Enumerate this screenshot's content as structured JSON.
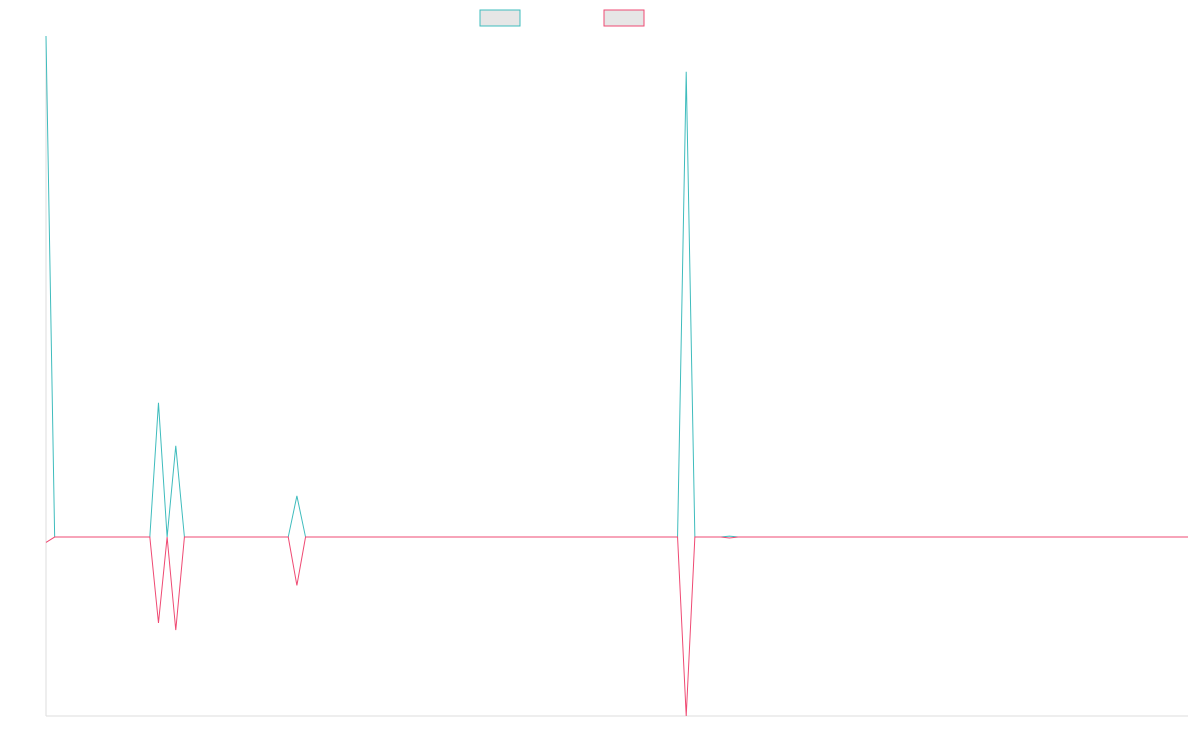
{
  "chart_data": {
    "type": "line",
    "title": "",
    "xlabel": "",
    "ylabel": "",
    "grid": false,
    "legend": {
      "position": "top-center",
      "entries": [
        {
          "label": "",
          "stroke": "#3fbcbd",
          "fill": "#e6e6e6"
        },
        {
          "label": "",
          "stroke": "#ef4a73",
          "fill": "#e6e6e6"
        }
      ]
    },
    "ylim": [
      -1.0,
      2.8
    ],
    "x": [
      0,
      1,
      2,
      3,
      4,
      5,
      6,
      7,
      8,
      9,
      10,
      11,
      12,
      13,
      14,
      15,
      16,
      17,
      18,
      19,
      20,
      21,
      22,
      23,
      24,
      25,
      26,
      27,
      28,
      29,
      30,
      31,
      32,
      33,
      34,
      35,
      36,
      37,
      38,
      39,
      40,
      41,
      42,
      43,
      44,
      45,
      46,
      47,
      48,
      49,
      50,
      51,
      52,
      53,
      54,
      55,
      56,
      57,
      58,
      59,
      60,
      61,
      62,
      63,
      64,
      65,
      66,
      67,
      68,
      69,
      70,
      71,
      72,
      73,
      74,
      75,
      76,
      77,
      78,
      79,
      80,
      81,
      82,
      83,
      84,
      85,
      86,
      87,
      88,
      89,
      90,
      91,
      92,
      93,
      94,
      95,
      96,
      97,
      98,
      99,
      100,
      101,
      102,
      103,
      104,
      105,
      106,
      107,
      108,
      109,
      110,
      111,
      112,
      113,
      114,
      115,
      116,
      117,
      118,
      119,
      120,
      121,
      122,
      123,
      124,
      125,
      126,
      127,
      128,
      129,
      130,
      131,
      132
    ],
    "series": [
      {
        "color": "#3fbcbd",
        "values": [
          2.8,
          0,
          0,
          0,
          0,
          0,
          0,
          0,
          0,
          0,
          0,
          0,
          0,
          0.75,
          0,
          0.51,
          0,
          0,
          0,
          0,
          0,
          0,
          0,
          0,
          0,
          0,
          0,
          0,
          0,
          0.23,
          0,
          0,
          0,
          0,
          0,
          0,
          0,
          0,
          0,
          0,
          0,
          0,
          0,
          0,
          0,
          0,
          0,
          0,
          0,
          0,
          0,
          0,
          0,
          0,
          0,
          0,
          0,
          0,
          0,
          0,
          0,
          0,
          0,
          0,
          0,
          0,
          0,
          0,
          0,
          0,
          0,
          0,
          0,
          0,
          2.6,
          0,
          0,
          0,
          0,
          0.005,
          0,
          0,
          0,
          0,
          0,
          0,
          0,
          0,
          0,
          0,
          0,
          0,
          0,
          0,
          0,
          0,
          0,
          0,
          0,
          0,
          0,
          0,
          0,
          0,
          0,
          0,
          0,
          0,
          0,
          0,
          0,
          0,
          0,
          0,
          0,
          0,
          0,
          0,
          0,
          0,
          0,
          0,
          0,
          0,
          0,
          0,
          0,
          0,
          0,
          0,
          0,
          0,
          0
        ]
      },
      {
        "color": "#ef4a73",
        "values": [
          -0.03,
          0,
          0,
          0,
          0,
          0,
          0,
          0,
          0,
          0,
          0,
          0,
          0,
          -0.48,
          0,
          -0.52,
          0,
          0,
          0,
          0,
          0,
          0,
          0,
          0,
          0,
          0,
          0,
          0,
          0,
          -0.27,
          0,
          0,
          0,
          0,
          0,
          0,
          0,
          0,
          0,
          0,
          0,
          0,
          0,
          0,
          0,
          0,
          0,
          0,
          0,
          0,
          0,
          0,
          0,
          0,
          0,
          0,
          0,
          0,
          0,
          0,
          0,
          0,
          0,
          0,
          0,
          0,
          0,
          0,
          0,
          0,
          0,
          0,
          0,
          0,
          -1.0,
          0,
          0,
          0,
          0,
          -0.005,
          0,
          0,
          0,
          0,
          0,
          0,
          0,
          0,
          0,
          0,
          0,
          0,
          0,
          0,
          0,
          0,
          0,
          0,
          0,
          0,
          0,
          0,
          0,
          0,
          0,
          0,
          0,
          0,
          0,
          0,
          0,
          0,
          0,
          0,
          0,
          0,
          0,
          0,
          0,
          0,
          0,
          0,
          0,
          0,
          0,
          0,
          0,
          0,
          0,
          0,
          0,
          0,
          0
        ]
      }
    ]
  }
}
